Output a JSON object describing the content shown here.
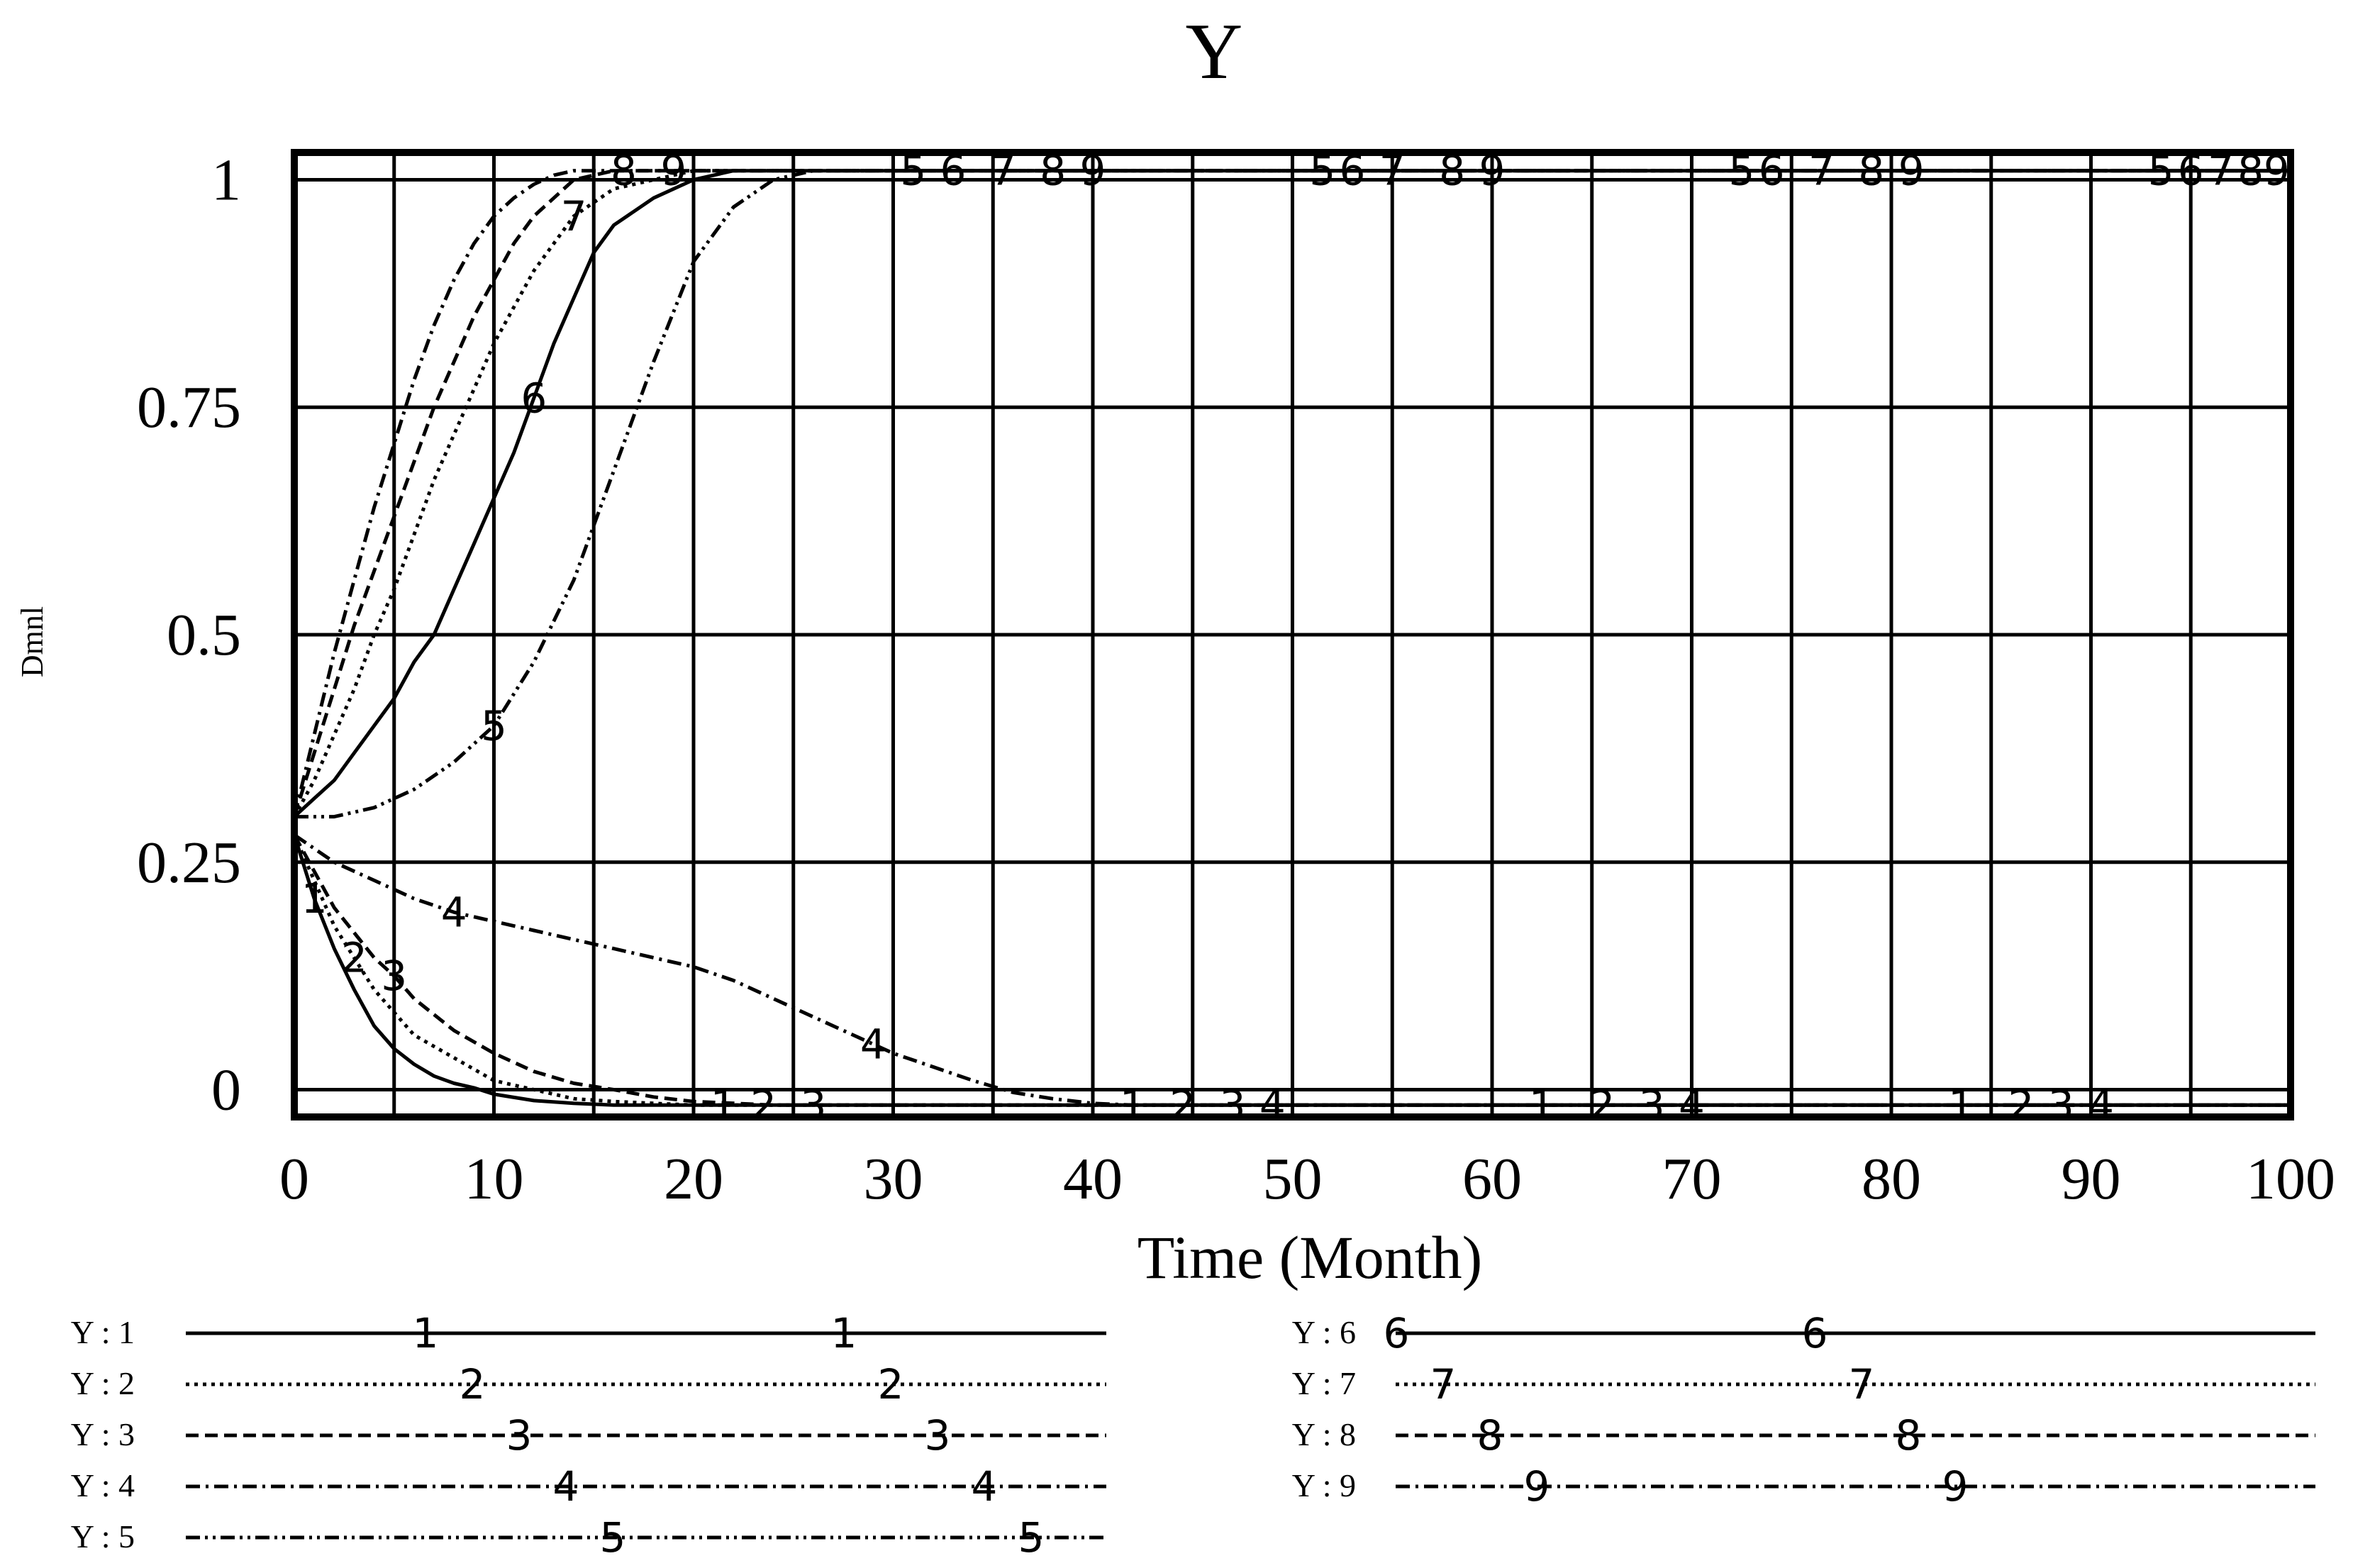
{
  "chart_data": {
    "type": "line",
    "title": "Y",
    "xlabel": "Time (Month)",
    "ylabel": "Dmnl",
    "xlim": [
      0,
      100
    ],
    "ylim": [
      -0.03,
      1.03
    ],
    "xticks": [
      0,
      10,
      20,
      30,
      40,
      50,
      60,
      70,
      80,
      90,
      100
    ],
    "xtick_labels": [
      "0",
      "10",
      "20",
      "30",
      "40",
      "50",
      "60",
      "70",
      "80",
      "90",
      "100"
    ],
    "yticks": [
      0,
      0.25,
      0.5,
      0.75,
      1
    ],
    "ytick_labels": [
      "0",
      "0.25",
      "0.5",
      "0.75",
      "1"
    ],
    "grid": true,
    "legend_position": "bottom",
    "series": [
      {
        "name": "Y : 1",
        "marker": "1",
        "dash": "solid",
        "x": [
          0,
          1,
          2,
          3,
          4,
          5,
          6,
          7,
          8,
          9,
          10,
          12,
          14,
          16,
          20,
          25,
          100
        ],
        "y": [
          0.28,
          0.21,
          0.155,
          0.11,
          0.07,
          0.045,
          0.028,
          0.015,
          0.007,
          0.002,
          -0.005,
          -0.012,
          -0.015,
          -0.017,
          -0.017,
          -0.017,
          -0.017
        ]
      },
      {
        "name": "Y : 2",
        "marker": "2",
        "dash": "dot",
        "x": [
          0,
          1,
          2,
          3,
          4,
          5,
          6,
          8,
          10,
          12,
          14,
          16,
          18,
          20,
          24,
          100
        ],
        "y": [
          0.28,
          0.23,
          0.18,
          0.145,
          0.11,
          0.085,
          0.06,
          0.035,
          0.01,
          0.0,
          -0.01,
          -0.013,
          -0.015,
          -0.017,
          -0.017,
          -0.017
        ]
      },
      {
        "name": "Y : 3",
        "marker": "3",
        "dash": "dash",
        "x": [
          0,
          2,
          4,
          5,
          6,
          8,
          10,
          12,
          14,
          16,
          18,
          20,
          24,
          100
        ],
        "y": [
          0.28,
          0.2,
          0.145,
          0.125,
          0.1,
          0.065,
          0.04,
          0.02,
          0.007,
          0.0,
          -0.008,
          -0.013,
          -0.017,
          -0.017
        ]
      },
      {
        "name": "Y : 4",
        "marker": "4",
        "dash": "dashdot",
        "x": [
          0,
          2,
          4,
          6,
          8,
          10,
          12,
          14,
          16,
          18,
          20,
          22,
          24,
          26,
          28,
          30,
          32,
          34,
          36,
          38,
          40,
          42,
          100
        ],
        "y": [
          0.28,
          0.25,
          0.23,
          0.21,
          0.195,
          0.185,
          0.175,
          0.165,
          0.155,
          0.145,
          0.135,
          0.12,
          0.1,
          0.08,
          0.06,
          0.04,
          0.025,
          0.01,
          -0.003,
          -0.01,
          -0.015,
          -0.017,
          -0.017
        ]
      },
      {
        "name": "Y : 5",
        "marker": "5",
        "dash": "dashdotdot",
        "x": [
          0,
          2,
          4,
          6,
          8,
          10,
          12,
          14,
          16,
          18,
          20,
          22,
          24,
          26,
          28,
          30,
          100
        ],
        "y": [
          0.3,
          0.3,
          0.31,
          0.33,
          0.36,
          0.4,
          0.47,
          0.56,
          0.68,
          0.8,
          0.91,
          0.97,
          1.0,
          1.01,
          1.01,
          1.01,
          1.01
        ]
      },
      {
        "name": "Y : 6",
        "marker": "6",
        "dash": "solid",
        "x": [
          0,
          1,
          2,
          3,
          4,
          5,
          6,
          7,
          8,
          9,
          10,
          11,
          12,
          13,
          14,
          15,
          16,
          18,
          20,
          22,
          24,
          100
        ],
        "y": [
          0.3,
          0.32,
          0.34,
          0.37,
          0.4,
          0.43,
          0.47,
          0.5,
          0.55,
          0.6,
          0.65,
          0.7,
          0.76,
          0.82,
          0.87,
          0.92,
          0.95,
          0.98,
          1.0,
          1.01,
          1.01,
          1.01
        ]
      },
      {
        "name": "Y : 7",
        "marker": "7",
        "dash": "dot",
        "x": [
          0,
          1,
          2,
          3,
          4,
          5,
          6,
          7,
          8,
          9,
          10,
          11,
          12,
          13,
          14,
          16,
          18,
          20,
          100
        ],
        "y": [
          0.3,
          0.34,
          0.39,
          0.44,
          0.5,
          0.55,
          0.61,
          0.67,
          0.72,
          0.77,
          0.82,
          0.86,
          0.9,
          0.93,
          0.96,
          0.99,
          1.0,
          1.01,
          1.01
        ]
      },
      {
        "name": "Y : 8",
        "marker": "8",
        "dash": "dash",
        "x": [
          0,
          1,
          2,
          3,
          4,
          5,
          6,
          7,
          8,
          9,
          10,
          11,
          12,
          13,
          14,
          16,
          18,
          100
        ],
        "y": [
          0.3,
          0.37,
          0.44,
          0.51,
          0.57,
          0.63,
          0.69,
          0.75,
          0.8,
          0.85,
          0.89,
          0.93,
          0.96,
          0.98,
          1.0,
          1.01,
          1.01,
          1.01
        ]
      },
      {
        "name": "Y : 9",
        "marker": "9",
        "dash": "dashdot",
        "x": [
          0,
          1,
          2,
          3,
          4,
          5,
          6,
          7,
          8,
          9,
          10,
          11,
          12,
          13,
          14,
          16,
          100
        ],
        "y": [
          0.3,
          0.39,
          0.48,
          0.56,
          0.64,
          0.71,
          0.78,
          0.84,
          0.89,
          0.93,
          0.96,
          0.98,
          0.995,
          1.005,
          1.01,
          1.01,
          1.01
        ]
      }
    ],
    "curve_markers": [
      {
        "series": 0,
        "x": [
          1,
          21.5,
          42,
          62.5,
          83.5
        ]
      },
      {
        "series": 1,
        "x": [
          3,
          23.5,
          44.5,
          65.5,
          86.5
        ]
      },
      {
        "series": 2,
        "x": [
          5,
          26,
          47,
          68,
          88.5
        ]
      },
      {
        "series": 3,
        "x": [
          8,
          29,
          49,
          70,
          90.5
        ]
      },
      {
        "series": 4,
        "x": [
          10,
          31,
          51.5,
          72.5,
          93.5
        ]
      },
      {
        "series": 5,
        "x": [
          12,
          33,
          53,
          74,
          95
        ]
      },
      {
        "series": 6,
        "x": [
          14,
          35.5,
          55,
          76.5,
          96.5
        ]
      },
      {
        "series": 7,
        "x": [
          16.5,
          38,
          58,
          79,
          98
        ]
      },
      {
        "series": 8,
        "x": [
          19,
          40,
          60,
          81,
          99.3
        ]
      }
    ]
  }
}
